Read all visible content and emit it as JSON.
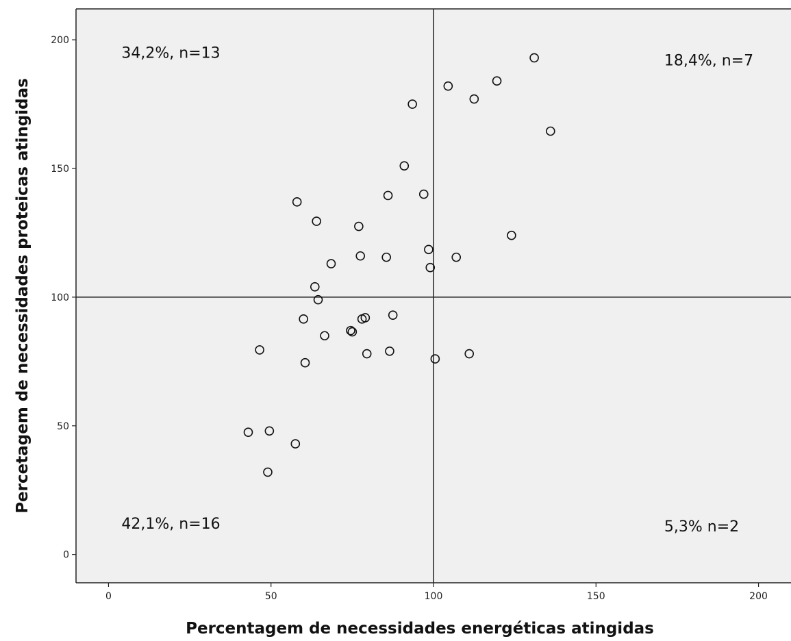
{
  "chart_data": {
    "type": "scatter",
    "title": "",
    "xlabel": "Percentagem de necessidades energéticas atingidas",
    "ylabel": "Percetagem de necessidades proteicas atingidas",
    "xlim": [
      -10,
      210
    ],
    "ylim": [
      -11,
      212
    ],
    "xticks": [
      0,
      50,
      100,
      150,
      200
    ],
    "yticks": [
      0,
      50,
      100,
      150,
      200
    ],
    "grid": false,
    "plot_background": "#f0f0f0",
    "marker": "open-circle",
    "reference_lines": {
      "x": 100,
      "y": 100
    },
    "annotations": [
      {
        "text": "34,2%, n=13",
        "x": 4,
        "y": 193
      },
      {
        "text": "18,4%, n=7",
        "x": 171,
        "y": 190
      },
      {
        "text": "42,1%, n=16",
        "x": 4,
        "y": 10
      },
      {
        "text": "5,3% n=2",
        "x": 171,
        "y": 9
      }
    ],
    "points": [
      [
        131,
        193
      ],
      [
        104.5,
        182
      ],
      [
        119.5,
        184
      ],
      [
        112.5,
        177
      ],
      [
        93.5,
        175
      ],
      [
        136,
        164.5
      ],
      [
        91,
        151
      ],
      [
        86,
        139.5
      ],
      [
        97,
        140
      ],
      [
        58,
        137
      ],
      [
        64,
        129.5
      ],
      [
        77,
        127.5
      ],
      [
        124,
        124
      ],
      [
        98.5,
        118.5
      ],
      [
        77.5,
        116
      ],
      [
        85.5,
        115.5
      ],
      [
        107,
        115.5
      ],
      [
        68.5,
        113
      ],
      [
        99,
        111.5
      ],
      [
        63.5,
        104
      ],
      [
        64.5,
        99
      ],
      [
        60,
        91.5
      ],
      [
        78,
        91.5
      ],
      [
        79,
        92
      ],
      [
        87.5,
        93
      ],
      [
        74.5,
        87
      ],
      [
        75,
        86.5
      ],
      [
        66.5,
        85
      ],
      [
        46.5,
        79.5
      ],
      [
        86.5,
        79
      ],
      [
        79.5,
        78
      ],
      [
        111,
        78
      ],
      [
        60.5,
        74.5
      ],
      [
        100.5,
        76
      ],
      [
        49.5,
        48
      ],
      [
        43,
        47.5
      ],
      [
        57.5,
        43
      ],
      [
        49,
        32
      ]
    ]
  }
}
